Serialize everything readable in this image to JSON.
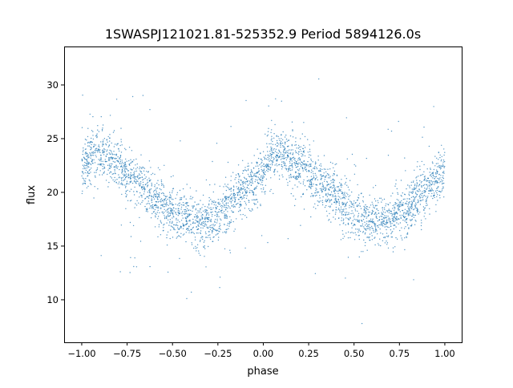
{
  "chart_data": {
    "type": "scatter",
    "title": "1SWASPJ121021.81-525352.9 Period 5894126.0s",
    "xlabel": "phase",
    "ylabel": "flux",
    "xlim": [
      -1.097,
      1.093
    ],
    "ylim": [
      6.04,
      33.58
    ],
    "xticks": [
      -1.0,
      -0.75,
      -0.5,
      -0.25,
      0.0,
      0.25,
      0.5,
      0.75,
      1.0
    ],
    "xtick_labels": [
      "−1.00",
      "−0.75",
      "−0.50",
      "−0.25",
      "0.00",
      "0.25",
      "0.50",
      "0.75",
      "1.00"
    ],
    "yticks": [
      10,
      15,
      20,
      25,
      30
    ],
    "ytick_labels": [
      "10",
      "15",
      "20",
      "25",
      "30"
    ],
    "grid": false,
    "color": "#1f77b4",
    "phase_range": [
      -1.0,
      1.0
    ],
    "binned_mean_curve": {
      "phase": [
        0.0,
        0.05,
        0.1,
        0.15,
        0.2,
        0.25,
        0.3,
        0.35,
        0.4,
        0.45,
        0.5,
        0.55,
        0.6,
        0.65,
        0.7,
        0.75,
        0.8,
        0.85,
        0.9,
        0.95
      ],
      "flux": [
        22.2,
        23.5,
        23.4,
        23.0,
        22.6,
        21.9,
        21.1,
        20.4,
        19.6,
        18.7,
        18.1,
        17.6,
        17.4,
        17.2,
        17.4,
        17.9,
        18.7,
        19.4,
        20.1,
        20.9
      ]
    },
    "scatter_std": 1.2,
    "flux_extremes": [
      7.3,
      32.3
    ]
  }
}
